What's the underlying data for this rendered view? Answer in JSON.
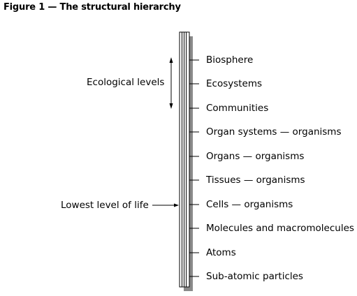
{
  "figure": {
    "title": "Figure 1 — The structural hierarchy"
  },
  "levels": [
    "Biosphere",
    "Ecosystems",
    "Communities",
    "Organ systems — organisms",
    "Organs — organisms",
    "Tissues — organisms",
    "Cells — organisms",
    "Molecules and macromolecules",
    "Atoms",
    "Sub-atomic particles"
  ],
  "annotations": {
    "ecological": "Ecological levels",
    "lowest": "Lowest level of life"
  },
  "colors": {
    "shadow": "#8a8a8a",
    "line": "#000000"
  }
}
